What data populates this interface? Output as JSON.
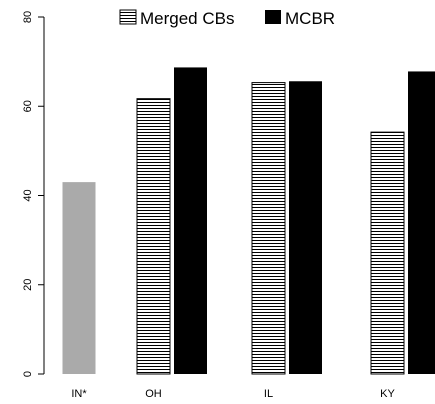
{
  "chart_data": {
    "type": "bar",
    "categories": [
      "IN*",
      "OH",
      "IL",
      "KY"
    ],
    "series": [
      {
        "name": "Merged CBs",
        "values": [
          43,
          61.7,
          65.3,
          54.2
        ],
        "colors": [
          "#aaaaaa",
          "striped",
          "striped",
          "striped"
        ]
      },
      {
        "name": "MCBR",
        "values": [
          null,
          68.7,
          65.6,
          67.8
        ],
        "color": "#000000"
      }
    ],
    "title": "",
    "xlabel": "",
    "ylabel": "",
    "ylim": [
      0,
      80
    ],
    "yticks": [
      "0",
      "20",
      "40",
      "60",
      "80"
    ],
    "legend": {
      "placement": "top-center",
      "items": [
        {
          "label": "Merged CBs",
          "swatch": "striped"
        },
        {
          "label": "MCBR",
          "swatch": "#000000"
        }
      ]
    },
    "grid": false
  }
}
